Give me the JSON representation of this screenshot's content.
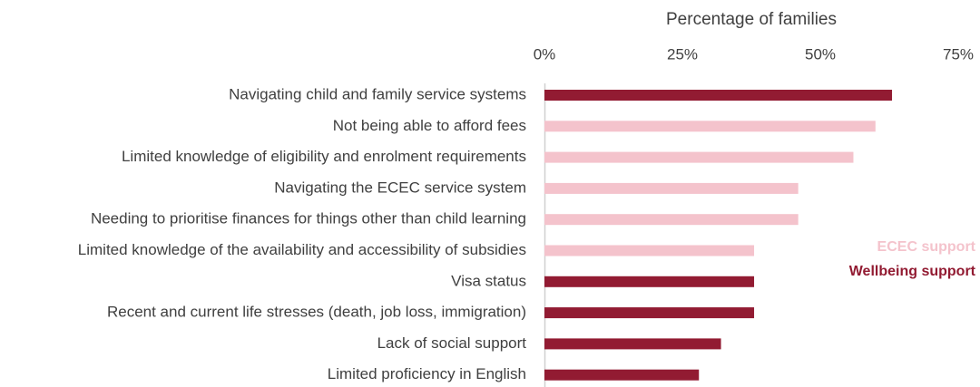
{
  "chart_data": {
    "type": "bar",
    "orientation": "horizontal",
    "x_label": "Percentage of families",
    "categories": [
      "Navigating child and family service systems",
      "Not being able to afford fees",
      "Limited knowledge of eligibility and enrolment requirements",
      "Navigating the ECEC service system",
      "Needing to prioritise finances for things other than child learning",
      "Limited knowledge of the availability and accessibility of subsidies",
      "Visa status",
      "Recent and current life stresses (death, job loss, immigration)",
      "Lack of social support",
      "Limited proficiency in English"
    ],
    "series": [
      {
        "name": "ECEC support",
        "color": "#f4c3cc",
        "values": [
          null,
          60,
          56,
          46,
          46,
          38,
          null,
          null,
          null,
          null
        ]
      },
      {
        "name": "Wellbeing support",
        "color": "#921b32",
        "values": [
          63,
          null,
          null,
          null,
          null,
          null,
          38,
          38,
          32,
          28
        ]
      }
    ],
    "xlim": [
      0,
      75
    ],
    "xticks": [
      {
        "value": 0,
        "label": "0%"
      },
      {
        "value": 25,
        "label": "25%"
      },
      {
        "value": 50,
        "label": "50%"
      },
      {
        "value": 75,
        "label": "75%"
      }
    ],
    "legend": "right"
  }
}
